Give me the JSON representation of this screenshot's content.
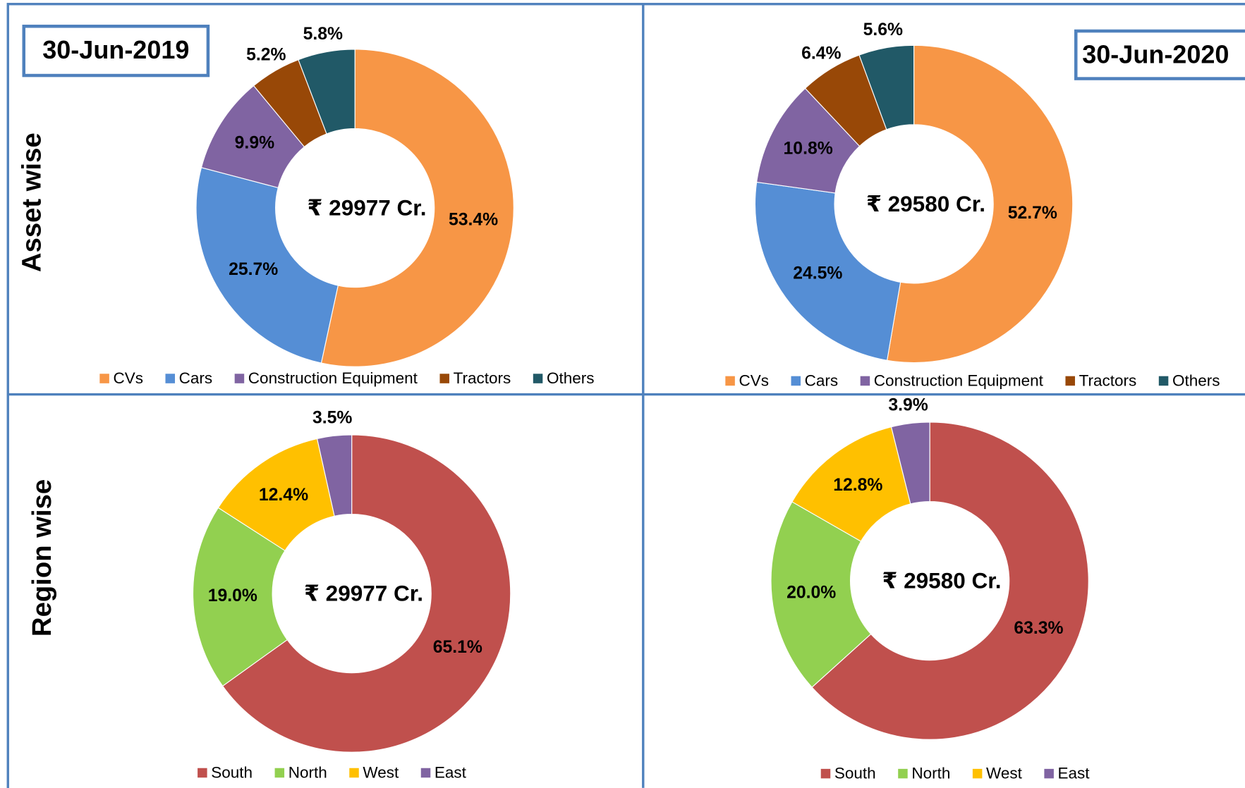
{
  "row_labels": [
    "Asset wise",
    "Region wise"
  ],
  "date_labels": [
    "30-Jun-2019",
    "30-Jun-2020"
  ],
  "chart_data": [
    {
      "type": "donut",
      "center_label": "₹ 29977 Cr.",
      "categories": [
        "CVs",
        "Cars",
        "Construction Equipment",
        "Tractors",
        "Others"
      ],
      "values": [
        53.4,
        25.7,
        9.9,
        5.2,
        5.8
      ],
      "value_labels": [
        "53.4%",
        "25.7%",
        "9.9%",
        "5.2%",
        "5.8%"
      ],
      "colors": [
        "#F79646",
        "#558ED5",
        "#8064A2",
        "#984807",
        "#215967"
      ]
    },
    {
      "type": "donut",
      "center_label": "₹ 29580 Cr.",
      "categories": [
        "CVs",
        "Cars",
        "Construction Equipment",
        "Tractors",
        "Others"
      ],
      "values": [
        52.7,
        24.5,
        10.8,
        6.4,
        5.6
      ],
      "value_labels": [
        "52.7%",
        "24.5%",
        "10.8%",
        "6.4%",
        "5.6%"
      ],
      "colors": [
        "#F79646",
        "#558ED5",
        "#8064A2",
        "#984807",
        "#215967"
      ]
    },
    {
      "type": "donut",
      "center_label": "₹ 29977 Cr.",
      "categories": [
        "South",
        "North",
        "West",
        "East"
      ],
      "values": [
        65.1,
        19.0,
        12.4,
        3.5
      ],
      "value_labels": [
        "65.1%",
        "19.0%",
        "12.4%",
        "3.5%"
      ],
      "colors": [
        "#C0504D",
        "#92D050",
        "#FFC000",
        "#8064A2"
      ]
    },
    {
      "type": "donut",
      "center_label": "₹ 29580 Cr.",
      "categories": [
        "South",
        "North",
        "West",
        "East"
      ],
      "values": [
        63.3,
        20.0,
        12.8,
        3.9
      ],
      "value_labels": [
        "63.3%",
        "20.0%",
        "12.8%",
        "3.9%"
      ],
      "colors": [
        "#C0504D",
        "#92D050",
        "#FFC000",
        "#8064A2"
      ]
    }
  ]
}
